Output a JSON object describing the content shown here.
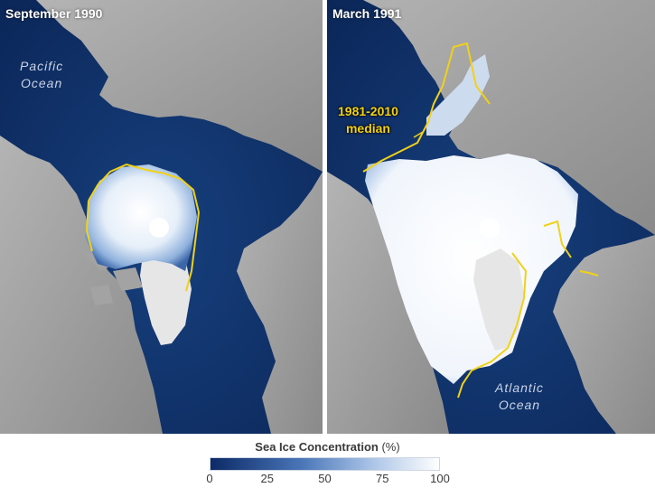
{
  "panels": {
    "left": {
      "title": "September 1990"
    },
    "right": {
      "title": "March 1991"
    }
  },
  "labels": {
    "pacific": [
      "Pacific",
      "Ocean"
    ],
    "atlantic": [
      "Atlantic",
      "Ocean"
    ],
    "median": [
      "1981-2010",
      "median"
    ]
  },
  "legend": {
    "title": "Sea Ice Concentration",
    "unit": "(%)",
    "ticks": [
      "0",
      "25",
      "50",
      "75",
      "100"
    ],
    "color_min": "#0c2a66",
    "color_max": "#ffffff"
  },
  "colors": {
    "ocean": "#0f2f66",
    "land": "#9c9c9c",
    "greenland": "#e4e4e4",
    "ice": "#f4f8fd",
    "median_line": "#f1d117"
  }
}
